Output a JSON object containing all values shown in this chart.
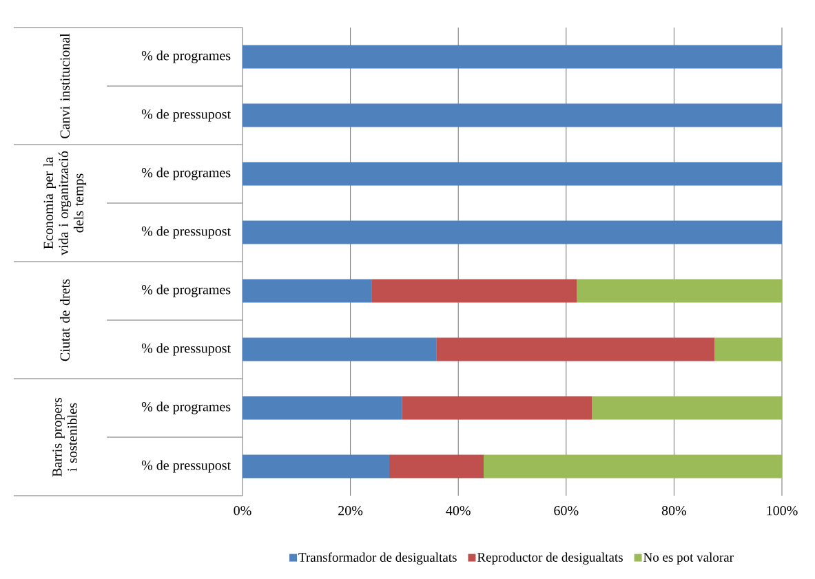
{
  "chart_data": {
    "type": "bar",
    "orientation": "horizontal",
    "stacked": true,
    "categories": [
      "% de programes",
      "% de pressupost",
      "% de programes",
      "% de pressupost",
      "% de programes",
      "% de pressupost",
      "% de programes",
      "% de pressupost"
    ],
    "annotations": [
      "Canvi institucional",
      "Economia per la vida i organització dels temps",
      "Ciutat de drets",
      "Barris propers i sostenibles"
    ],
    "series": [
      {
        "name": "Transformador de desigualtats",
        "color": "#4f81bd",
        "values": [
          100,
          100,
          100,
          100,
          24,
          36,
          29.6,
          27.2
        ]
      },
      {
        "name": "Reproductor de desigualtats",
        "color": "#c0504d",
        "values": [
          0,
          0,
          0,
          0,
          38,
          51.5,
          35.2,
          17.5
        ]
      },
      {
        "name": "No es pot valorar",
        "color": "#9bbb59",
        "values": [
          0,
          0,
          0,
          0,
          38,
          12.5,
          35.2,
          55.3
        ]
      }
    ],
    "xlim": [
      0,
      100
    ],
    "xticks": [
      {
        "value": 0,
        "label": "0%"
      },
      {
        "value": 20,
        "label": "20%"
      },
      {
        "value": 40,
        "label": "40%"
      },
      {
        "value": 60,
        "label": "60%"
      },
      {
        "value": 80,
        "label": "80%"
      },
      {
        "value": 100,
        "label": "100%"
      }
    ],
    "grid": "x",
    "legend": "bottom"
  }
}
